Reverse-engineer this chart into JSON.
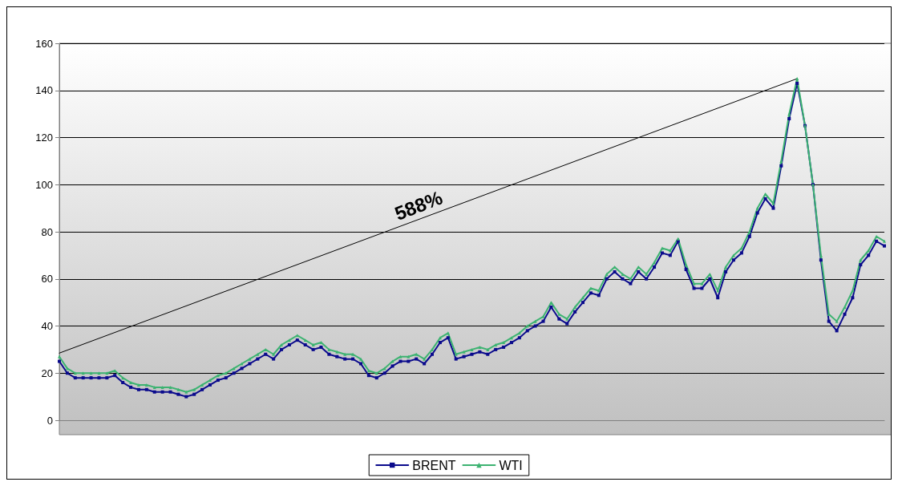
{
  "chart_data": {
    "type": "line",
    "categories": [
      null,
      null,
      null,
      null,
      null,
      null,
      null,
      null,
      null,
      null,
      null,
      null,
      null,
      null,
      null,
      null,
      null,
      null,
      null,
      null,
      null,
      null,
      null,
      null,
      null,
      null,
      null,
      null,
      null,
      null,
      null,
      null,
      null,
      null,
      null,
      null,
      null,
      null,
      null,
      null,
      null,
      null,
      null,
      null,
      null,
      null,
      null,
      null,
      null,
      null,
      null,
      null,
      null,
      null,
      null,
      null,
      null,
      null,
      null,
      null,
      null,
      null,
      null,
      null,
      null,
      null,
      null,
      null,
      null,
      null,
      null,
      null,
      null,
      null,
      null,
      null,
      null,
      null,
      null,
      null,
      null,
      null,
      null,
      null,
      null,
      null,
      null,
      null,
      null,
      null,
      null,
      null,
      null,
      null,
      null,
      null,
      null,
      null,
      null,
      null,
      null,
      null,
      null,
      null,
      null
    ],
    "series": [
      {
        "name": "BRENT",
        "color": "#0a0a8c",
        "marker": "square",
        "values": [
          25,
          20,
          18,
          18,
          18,
          18,
          18,
          19,
          16,
          14,
          13,
          13,
          12,
          12,
          12,
          11,
          10,
          11,
          13,
          15,
          17,
          18,
          20,
          22,
          24,
          26,
          28,
          26,
          30,
          32,
          34,
          32,
          30,
          31,
          28,
          27,
          26,
          26,
          24,
          19,
          18,
          20,
          23,
          25,
          25,
          26,
          24,
          28,
          33,
          35,
          26,
          27,
          28,
          29,
          28,
          30,
          31,
          33,
          35,
          38,
          40,
          42,
          48,
          43,
          41,
          46,
          50,
          54,
          53,
          60,
          63,
          60,
          58,
          63,
          60,
          65,
          71,
          70,
          76,
          64,
          56,
          56,
          60,
          52,
          63,
          68,
          71,
          78,
          88,
          94,
          90,
          108,
          128,
          143,
          125,
          100,
          68,
          42,
          38,
          45,
          52,
          66,
          70,
          76,
          74
        ]
      },
      {
        "name": "WTI",
        "color": "#3cb371",
        "marker": "triangle",
        "values": [
          27,
          22,
          20,
          20,
          20,
          20,
          20,
          21,
          18,
          16,
          15,
          15,
          14,
          14,
          14,
          13,
          12,
          13,
          15,
          17,
          19,
          20,
          22,
          24,
          26,
          28,
          30,
          28,
          32,
          34,
          36,
          34,
          32,
          33,
          30,
          29,
          28,
          28,
          26,
          21,
          20,
          22,
          25,
          27,
          27,
          28,
          26,
          30,
          35,
          37,
          28,
          29,
          30,
          31,
          30,
          32,
          33,
          35,
          37,
          40,
          42,
          44,
          50,
          45,
          43,
          48,
          52,
          56,
          55,
          62,
          65,
          62,
          60,
          65,
          62,
          67,
          73,
          72,
          77,
          66,
          58,
          58,
          62,
          55,
          65,
          70,
          73,
          80,
          90,
          96,
          92,
          110,
          130,
          145,
          125,
          100,
          70,
          45,
          42,
          48,
          55,
          68,
          72,
          78,
          76
        ]
      },
      {
        "color": "#000000",
        "marker": "none",
        "values": [
          28.5,
          null,
          null,
          null,
          null,
          null,
          null,
          null,
          null,
          null,
          null,
          null,
          null,
          null,
          null,
          null,
          null,
          null,
          null,
          null,
          null,
          null,
          null,
          null,
          null,
          null,
          null,
          null,
          null,
          null,
          null,
          null,
          null,
          null,
          null,
          null,
          null,
          null,
          null,
          null,
          null,
          null,
          null,
          null,
          null,
          null,
          null,
          null,
          null,
          null,
          null,
          null,
          null,
          null,
          null,
          null,
          null,
          null,
          null,
          null,
          null,
          null,
          null,
          null,
          null,
          null,
          null,
          null,
          null,
          null,
          null,
          null,
          null,
          null,
          null,
          null,
          null,
          null,
          null,
          null,
          null,
          null,
          null,
          null,
          null,
          null,
          null,
          null,
          null,
          null,
          null,
          null,
          null,
          145,
          null,
          null,
          null,
          null,
          null,
          null,
          null,
          null,
          null,
          null,
          null
        ]
      }
    ],
    "ylim": [
      0,
      160
    ],
    "yticks": [
      0,
      20,
      40,
      60,
      80,
      100,
      120,
      140,
      160
    ],
    "grid": "y",
    "legend": "bottom",
    "line_style": "solid",
    "annotations": [
      "588%"
    ]
  }
}
